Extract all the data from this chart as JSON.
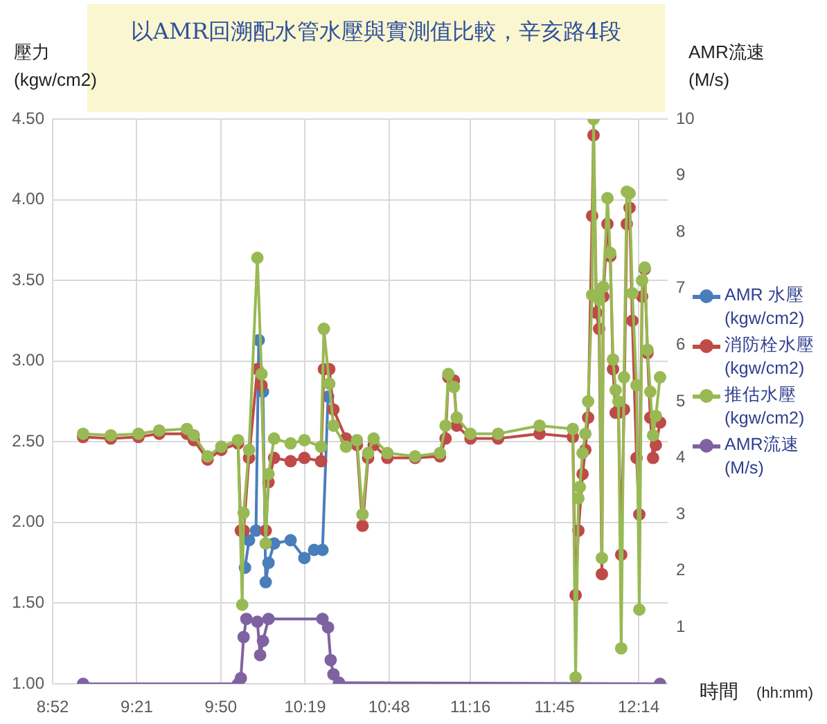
{
  "chart_data": {
    "type": "line",
    "title": "以AMR回溯配水管水壓與實測值比較，辛亥路4段",
    "ylabel": "壓力\n(kgw/cm2)",
    "y2label": "AMR流速\n(M/s)",
    "xlabel": "時間 (hh:mm)",
    "xlim": [
      8.867,
      12.4
    ],
    "xticks": [
      {
        "value": 8.867,
        "label": "8:52"
      },
      {
        "value": 9.35,
        "label": "9:21"
      },
      {
        "value": 9.833,
        "label": "9:50"
      },
      {
        "value": 10.317,
        "label": "10:19"
      },
      {
        "value": 10.8,
        "label": "10:48"
      },
      {
        "value": 11.267,
        "label": "11:16"
      },
      {
        "value": 11.75,
        "label": "11:45"
      },
      {
        "value": 12.233,
        "label": "12:14"
      }
    ],
    "ylim": [
      1,
      4.5
    ],
    "yticks": [
      {
        "value": 1,
        "label": "1.00"
      },
      {
        "value": 1.5,
        "label": "1.50"
      },
      {
        "value": 2,
        "label": "2.00"
      },
      {
        "value": 2.5,
        "label": "2.50"
      },
      {
        "value": 3,
        "label": "3.00"
      },
      {
        "value": 3.5,
        "label": "3.50"
      },
      {
        "value": 4,
        "label": "4.00"
      },
      {
        "value": 4.5,
        "label": "4.50"
      }
    ],
    "y2lim": [
      0,
      10
    ],
    "y2ticks": [
      1,
      2,
      3,
      4,
      5,
      6,
      7,
      8,
      9,
      10
    ],
    "grid": true,
    "legend": "right",
    "marker": "circle",
    "series": [
      {
        "name": "AMR 水壓 (kgw/cm2)",
        "color": "#4a7ebb",
        "x": [
          9.972,
          9.995,
          10.035,
          10.051,
          10.075,
          10.091,
          10.107,
          10.139,
          10.234,
          10.313,
          10.369,
          10.417,
          10.449
        ],
        "values": [
          1.72,
          1.89,
          1.95,
          3.13,
          2.81,
          1.63,
          1.75,
          1.87,
          1.89,
          1.78,
          1.83,
          1.83,
          2.78
        ]
      },
      {
        "name": "消防栓水壓 (kgw/cm2)",
        "color": "#be4b48",
        "x": [
          9.042,
          9.201,
          9.36,
          9.479,
          9.638,
          9.678,
          9.757,
          9.836,
          9.932,
          9.948,
          9.964,
          9.995,
          10.043,
          10.067,
          10.091,
          10.107,
          10.139,
          10.234,
          10.313,
          10.409,
          10.425,
          10.456,
          10.48,
          10.552,
          10.615,
          10.647,
          10.679,
          10.711,
          10.79,
          10.949,
          11.092,
          11.124,
          11.14,
          11.172,
          11.188,
          11.267,
          11.426,
          11.664,
          11.855,
          11.871,
          11.887,
          11.911,
          11.927,
          11.943,
          11.966,
          11.974,
          11.99,
          12.006,
          12.022,
          12.03,
          12.054,
          12.07,
          12.086,
          12.101,
          12.117,
          12.133,
          12.149,
          12.165,
          12.181,
          12.197,
          12.221,
          12.237,
          12.253,
          12.268,
          12.284,
          12.3,
          12.316,
          12.332,
          12.356
        ],
        "values": [
          2.53,
          2.52,
          2.53,
          2.55,
          2.55,
          2.51,
          2.39,
          2.45,
          2.49,
          1.95,
          1.95,
          2.4,
          2.95,
          2.85,
          1.95,
          2.25,
          2.4,
          2.38,
          2.4,
          2.38,
          2.95,
          2.95,
          2.7,
          2.52,
          2.48,
          1.98,
          2.4,
          2.48,
          2.4,
          2.4,
          2.41,
          2.52,
          2.9,
          2.88,
          2.6,
          2.52,
          2.52,
          2.55,
          2.53,
          1.55,
          1.95,
          2.3,
          2.45,
          2.65,
          3.9,
          4.4,
          3.3,
          3.2,
          1.68,
          3.4,
          3.85,
          3.65,
          2.95,
          2.68,
          2.68,
          1.8,
          2.7,
          3.85,
          3.95,
          3.25,
          2.4,
          2.05,
          3.4,
          3.57,
          3.05,
          2.65,
          2.4,
          2.48,
          2.62
        ]
      },
      {
        "name": "推估水壓 (kgw/cm2)",
        "color": "#98b954",
        "x": [
          9.042,
          9.201,
          9.36,
          9.479,
          9.638,
          9.678,
          9.757,
          9.836,
          9.932,
          9.956,
          9.964,
          9.995,
          10.043,
          10.067,
          10.091,
          10.107,
          10.139,
          10.234,
          10.313,
          10.409,
          10.425,
          10.456,
          10.48,
          10.552,
          10.615,
          10.647,
          10.679,
          10.711,
          10.79,
          10.949,
          11.092,
          11.124,
          11.14,
          11.172,
          11.188,
          11.267,
          11.426,
          11.664,
          11.855,
          11.871,
          11.887,
          11.895,
          11.911,
          11.927,
          11.943,
          11.966,
          11.974,
          11.99,
          12.006,
          12.022,
          12.03,
          12.054,
          12.07,
          12.086,
          12.101,
          12.117,
          12.133,
          12.149,
          12.165,
          12.181,
          12.197,
          12.221,
          12.237,
          12.253,
          12.268,
          12.284,
          12.3,
          12.316,
          12.332,
          12.356
        ],
        "values": [
          2.55,
          2.54,
          2.55,
          2.57,
          2.58,
          2.54,
          2.41,
          2.47,
          2.51,
          1.49,
          2.06,
          2.45,
          3.64,
          2.92,
          1.87,
          2.3,
          2.52,
          2.49,
          2.51,
          2.47,
          3.2,
          2.86,
          2.6,
          2.47,
          2.51,
          2.05,
          2.43,
          2.52,
          2.43,
          2.41,
          2.43,
          2.6,
          2.92,
          2.84,
          2.65,
          2.55,
          2.55,
          2.6,
          2.58,
          1.04,
          2.15,
          2.22,
          2.43,
          2.55,
          2.75,
          3.41,
          4.5,
          3.41,
          3.38,
          1.78,
          3.46,
          4.01,
          3.67,
          3.01,
          2.82,
          2.75,
          1.22,
          2.9,
          4.05,
          4.04,
          3.42,
          2.85,
          1.46,
          3.5,
          3.58,
          3.07,
          2.81,
          2.54,
          2.66,
          2.9
        ]
      },
      {
        "name": "AMR流速 (M/s)",
        "color": "#7f62a1",
        "axis": "y2",
        "x": [
          9.042,
          9.932,
          9.948,
          9.964,
          9.98,
          10.043,
          10.059,
          10.075,
          10.107,
          10.417,
          10.449,
          10.464,
          10.48,
          10.512,
          12.356
        ],
        "values": [
          0,
          0,
          0.1,
          0.83,
          1.15,
          1.1,
          0.51,
          0.76,
          1.15,
          1.15,
          1.0,
          0.42,
          0.17,
          0.02,
          0
        ]
      }
    ]
  }
}
